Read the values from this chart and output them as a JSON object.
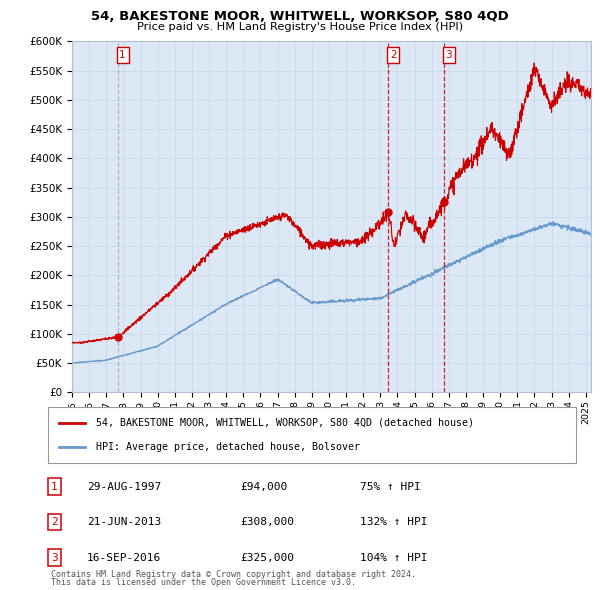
{
  "title": "54, BAKESTONE MOOR, WHITWELL, WORKSOP, S80 4QD",
  "subtitle": "Price paid vs. HM Land Registry's House Price Index (HPI)",
  "red_label": "54, BAKESTONE MOOR, WHITWELL, WORKSOP, S80 4QD (detached house)",
  "blue_label": "HPI: Average price, detached house, Bolsover",
  "transactions": [
    {
      "num": 1,
      "date": "29-AUG-1997",
      "price": "£94,000",
      "year": 1997.66,
      "price_val": 94000,
      "pct": "75%",
      "arrow": "↑",
      "vline_color": "#aaaaaa"
    },
    {
      "num": 2,
      "date": "21-JUN-2013",
      "price": "£308,000",
      "year": 2013.47,
      "price_val": 308000,
      "pct": "132%",
      "arrow": "↑",
      "vline_color": "#cc0000"
    },
    {
      "num": 3,
      "date": "16-SEP-2016",
      "price": "£325,000",
      "year": 2016.71,
      "price_val": 325000,
      "pct": "104%",
      "arrow": "↑",
      "vline_color": "#cc0000"
    }
  ],
  "footnote1": "Contains HM Land Registry data © Crown copyright and database right 2024.",
  "footnote2": "This data is licensed under the Open Government Licence v3.0.",
  "ylim": [
    0,
    600000
  ],
  "yticks": [
    0,
    50000,
    100000,
    150000,
    200000,
    250000,
    300000,
    350000,
    400000,
    450000,
    500000,
    550000,
    600000
  ],
  "xlim_start": 1995,
  "xlim_end": 2025.3,
  "background_color": "#ffffff",
  "chart_bg_color": "#dce8f5",
  "grid_color": "#c8d8e8",
  "hpi_color": "#6699cc",
  "price_color": "#cc0000"
}
